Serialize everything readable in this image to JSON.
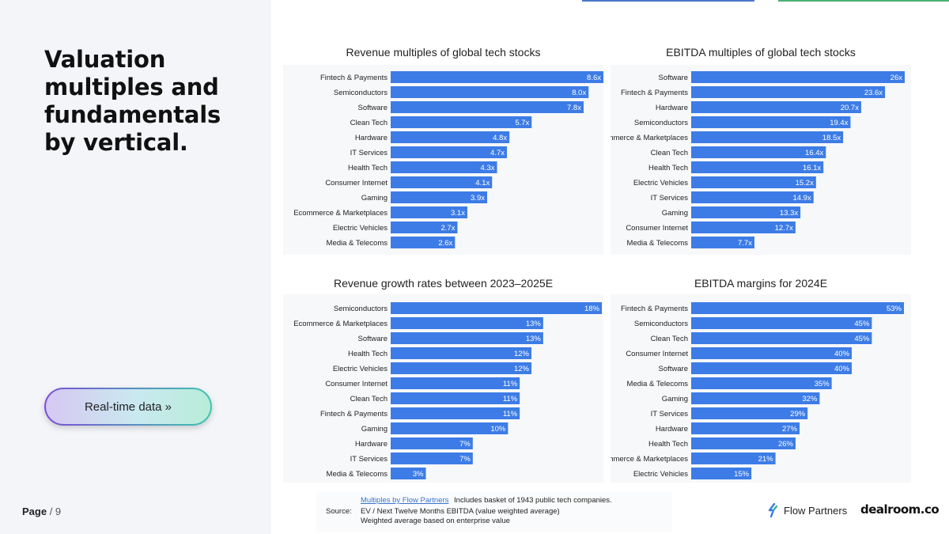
{
  "header": {
    "title": "Valuation multiples and fundamentals by vertical."
  },
  "cta": {
    "label": "Real-time data »"
  },
  "pagination": {
    "label": "Page",
    "separator": " / ",
    "total": "9"
  },
  "colors": {
    "bar": "#3d7ce6",
    "panel": "#f3f5f9",
    "accent_purple": "#7b4fd6",
    "accent_teal": "#3fc4b0"
  },
  "chart_data": [
    {
      "type": "bar",
      "orientation": "horizontal",
      "title": "Revenue multiples of global tech stocks",
      "categories": [
        "Fintech & Payments",
        "Semiconductors",
        "Software",
        "Clean Tech",
        "Hardware",
        "IT Services",
        "Health Tech",
        "Consumer Internet",
        "Gaming",
        "Ecommerce & Marketplaces",
        "Electric Vehicles",
        "Media & Telecoms"
      ],
      "values": [
        8.6,
        8.0,
        7.8,
        5.7,
        4.8,
        4.7,
        4.3,
        4.1,
        3.9,
        3.1,
        2.7,
        2.6
      ],
      "labels": [
        "8.6x",
        "8.0x",
        "7.8x",
        "5.7x",
        "4.8x",
        "4.7x",
        "4.3x",
        "4.1x",
        "3.9x",
        "3.1x",
        "2.7x",
        "2.6x"
      ],
      "xlim": [
        0,
        8.6
      ]
    },
    {
      "type": "bar",
      "orientation": "horizontal",
      "title": "EBITDA multiples of global tech stocks",
      "categories": [
        "Software",
        "Fintech & Payments",
        "Hardware",
        "Semiconductors",
        "Ecommerce & Marketplaces",
        "Clean Tech",
        "Health Tech",
        "Electric Vehicles",
        "IT Services",
        "Gaming",
        "Consumer Internet",
        "Media & Telecoms"
      ],
      "values": [
        26,
        23.6,
        20.7,
        19.4,
        18.5,
        16.4,
        16.1,
        15.2,
        14.9,
        13.3,
        12.7,
        7.7
      ],
      "labels": [
        "26x",
        "23.6x",
        "20.7x",
        "19.4x",
        "18.5x",
        "16.4x",
        "16.1x",
        "15.2x",
        "14.9x",
        "13.3x",
        "12.7x",
        "7.7x"
      ],
      "xlim": [
        0,
        26
      ]
    },
    {
      "type": "bar",
      "orientation": "horizontal",
      "title": "Revenue growth rates between 2023–2025E",
      "categories": [
        "Semiconductors",
        "Ecommerce & Marketplaces",
        "Software",
        "Health Tech",
        "Electric Vehicles",
        "Consumer Internet",
        "Clean Tech",
        "Fintech & Payments",
        "Gaming",
        "Hardware",
        "IT Services",
        "Media & Telecoms"
      ],
      "values": [
        18,
        13,
        13,
        12,
        12,
        11,
        11,
        11,
        10,
        7,
        7,
        3
      ],
      "labels": [
        "18%",
        "13%",
        "13%",
        "12%",
        "12%",
        "11%",
        "11%",
        "11%",
        "10%",
        "7%",
        "7%",
        "3%"
      ],
      "xlim": [
        0,
        18
      ]
    },
    {
      "type": "bar",
      "orientation": "horizontal",
      "title": "EBITDA margins for 2024E",
      "categories": [
        "Fintech & Payments",
        "Semiconductors",
        "Clean Tech",
        "Consumer Internet",
        "Software",
        "Media & Telecoms",
        "Gaming",
        "IT Services",
        "Hardware",
        "Health Tech",
        "Ecommerce & Marketplaces",
        "Electric Vehicles"
      ],
      "values": [
        53,
        45,
        45,
        40,
        40,
        35,
        32,
        29,
        27,
        26,
        21,
        15
      ],
      "labels": [
        "53%",
        "45%",
        "45%",
        "40%",
        "40%",
        "35%",
        "32%",
        "29%",
        "27%",
        "26%",
        "21%",
        "15%"
      ],
      "xlim": [
        0,
        53
      ]
    }
  ],
  "footer": {
    "source_label": "Source:",
    "link_text": "Multiples by Flow Partners",
    "note1": "Includes basket of 1943 public tech companies.",
    "note2": "EV / Next Twelve Months EBITDA (value weighted average)",
    "note3": "Weighted average based on enterprise value"
  },
  "brands": {
    "flow_partners": "Flow Partners",
    "dealroom": "dealroom.co"
  }
}
